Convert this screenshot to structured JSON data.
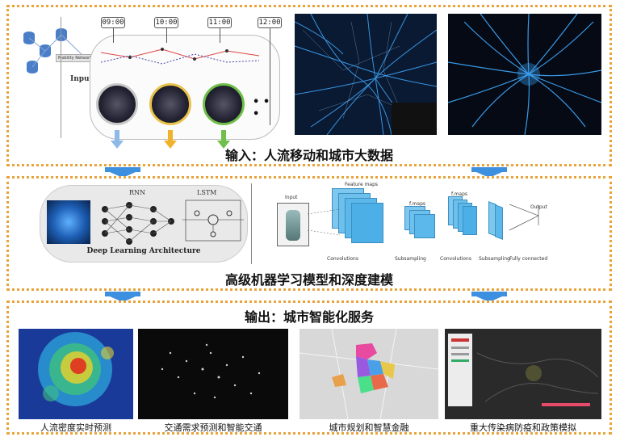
{
  "input_panel": {
    "caption": "输入：人流移动和城市大数据",
    "times": [
      "09:00",
      "10:00",
      "11:00",
      "12:00"
    ],
    "input_label": "Input",
    "mobility_label": "Mobility Network",
    "ellipsis": "• • •"
  },
  "model_panel": {
    "caption": "高级机器学习模型和深度建模",
    "rnn_label": "RNN",
    "lstm_label": "LSTM",
    "dl_title": "Deep Learning Architecture",
    "cnn": {
      "input": "Input",
      "feature_maps": "Feature maps",
      "f_maps_1": "f.maps",
      "f_maps_2": "f.maps",
      "output": "Output",
      "convolutions_1": "Convolutions",
      "subsampling_1": "Subsampling",
      "convolutions_2": "Convolutions",
      "subsampling_2": "Subsampling",
      "fully_connected": "Fully connected"
    }
  },
  "output_panel": {
    "caption": "输出：城市智能化服务",
    "items": [
      {
        "label": "人流密度实时预测"
      },
      {
        "label": "交通需求预测和智能交通"
      },
      {
        "label": "城市规划和智慧金融"
      },
      {
        "label": "重大传染病防疫和政策模拟"
      }
    ]
  },
  "colors": {
    "border": "#e8a33a",
    "arrow": "#3d8fe0",
    "map_bg": "#0b1e3a",
    "map_line": "#3fa9ff"
  }
}
